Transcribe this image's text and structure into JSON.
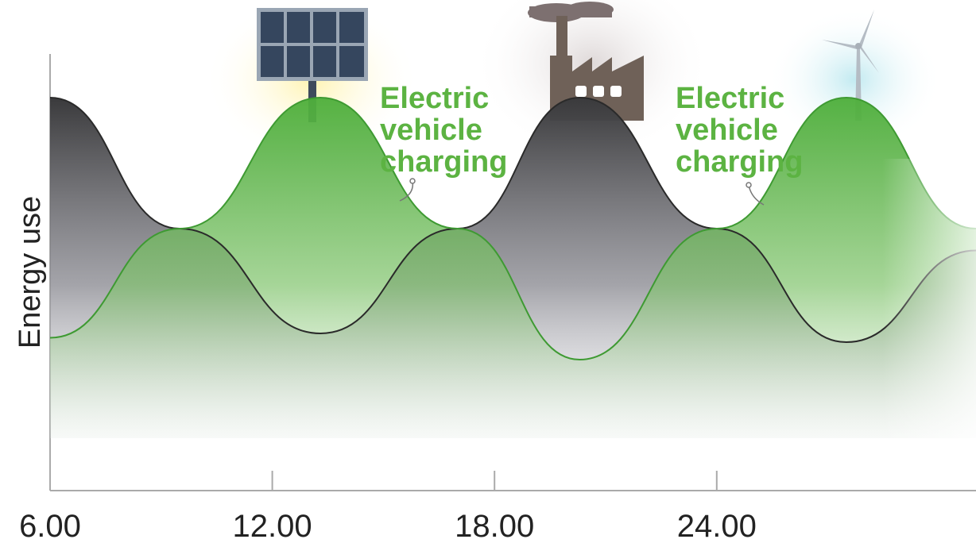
{
  "chart_data": {
    "type": "area",
    "title": "",
    "xlabel": "",
    "ylabel": "Energy use",
    "x_ticks": [
      6,
      12,
      18,
      24
    ],
    "x_tick_labels": [
      "6.00",
      "12.00",
      "18.00",
      "24.00"
    ],
    "xlim": [
      6,
      31
    ],
    "ylim": [
      0,
      1
    ],
    "grid": false,
    "series": [
      {
        "color": "#4a4a4a",
        "x": [
          6,
          9.5,
          13.3,
          17,
          20.3,
          24,
          27.5,
          31
        ],
        "values": [
          0.9,
          0.6,
          0.36,
          0.6,
          0.9,
          0.6,
          0.34,
          0.55
        ]
      },
      {
        "color": "#4cae3b",
        "x": [
          6,
          9.5,
          13.3,
          17,
          20.3,
          24,
          27.5,
          31
        ],
        "values": [
          0.35,
          0.6,
          0.9,
          0.6,
          0.3,
          0.6,
          0.9,
          0.6
        ]
      }
    ],
    "annotations": [
      {
        "text_lines": [
          "Electric",
          "vehicle",
          "charging"
        ],
        "color": "#5cb342",
        "x": 15.9,
        "y": 0.9
      },
      {
        "text_lines": [
          "Electric",
          "vehicle",
          "charging"
        ],
        "color": "#5cb342",
        "x": 23.7,
        "y": 0.87
      }
    ],
    "icons": [
      "solar-panel-icon",
      "factory-icon",
      "wind-turbine-icon"
    ]
  }
}
